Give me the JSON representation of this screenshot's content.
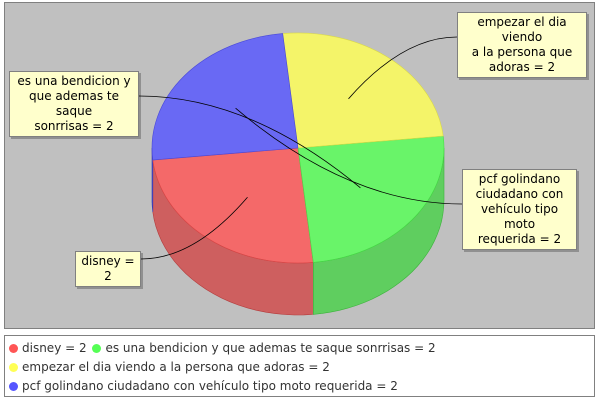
{
  "chart_data": {
    "type": "pie",
    "title": "",
    "slices": [
      {
        "label": "disney",
        "value": 2,
        "display": "disney = 2",
        "color": "#ff5555"
      },
      {
        "label": "es una bendicion y que ademas te saque sonrrisas",
        "value": 2,
        "display": "es una bendicion y que ademas te saque sonrrisas = 2",
        "color": "#55ff55"
      },
      {
        "label": "empezar el dia viendo a la persona que adoras",
        "value": 2,
        "display": "empezar el dia viendo a la persona que adoras = 2",
        "color": "#ffff55"
      },
      {
        "label": "pcf golindano ciudadano con vehículo tipo moto requerida",
        "value": 2,
        "display": "pcf golindano ciudadano con vehículo tipo moto requerida = 2",
        "color": "#5555ff"
      }
    ],
    "callouts": [
      {
        "lines": [
          "disney = 2"
        ]
      },
      {
        "lines": [
          "es una bendicion y",
          "que ademas te saque",
          "sonrrisas = 2"
        ]
      },
      {
        "lines": [
          "empezar el dia viendo",
          "a la persona que",
          "adoras = 2"
        ]
      },
      {
        "lines": [
          "pcf golindano",
          "ciudadano con",
          "vehículo tipo moto",
          "requerida = 2"
        ]
      }
    ],
    "legend_position": "bottom",
    "background_color": "#c0c0c0"
  }
}
